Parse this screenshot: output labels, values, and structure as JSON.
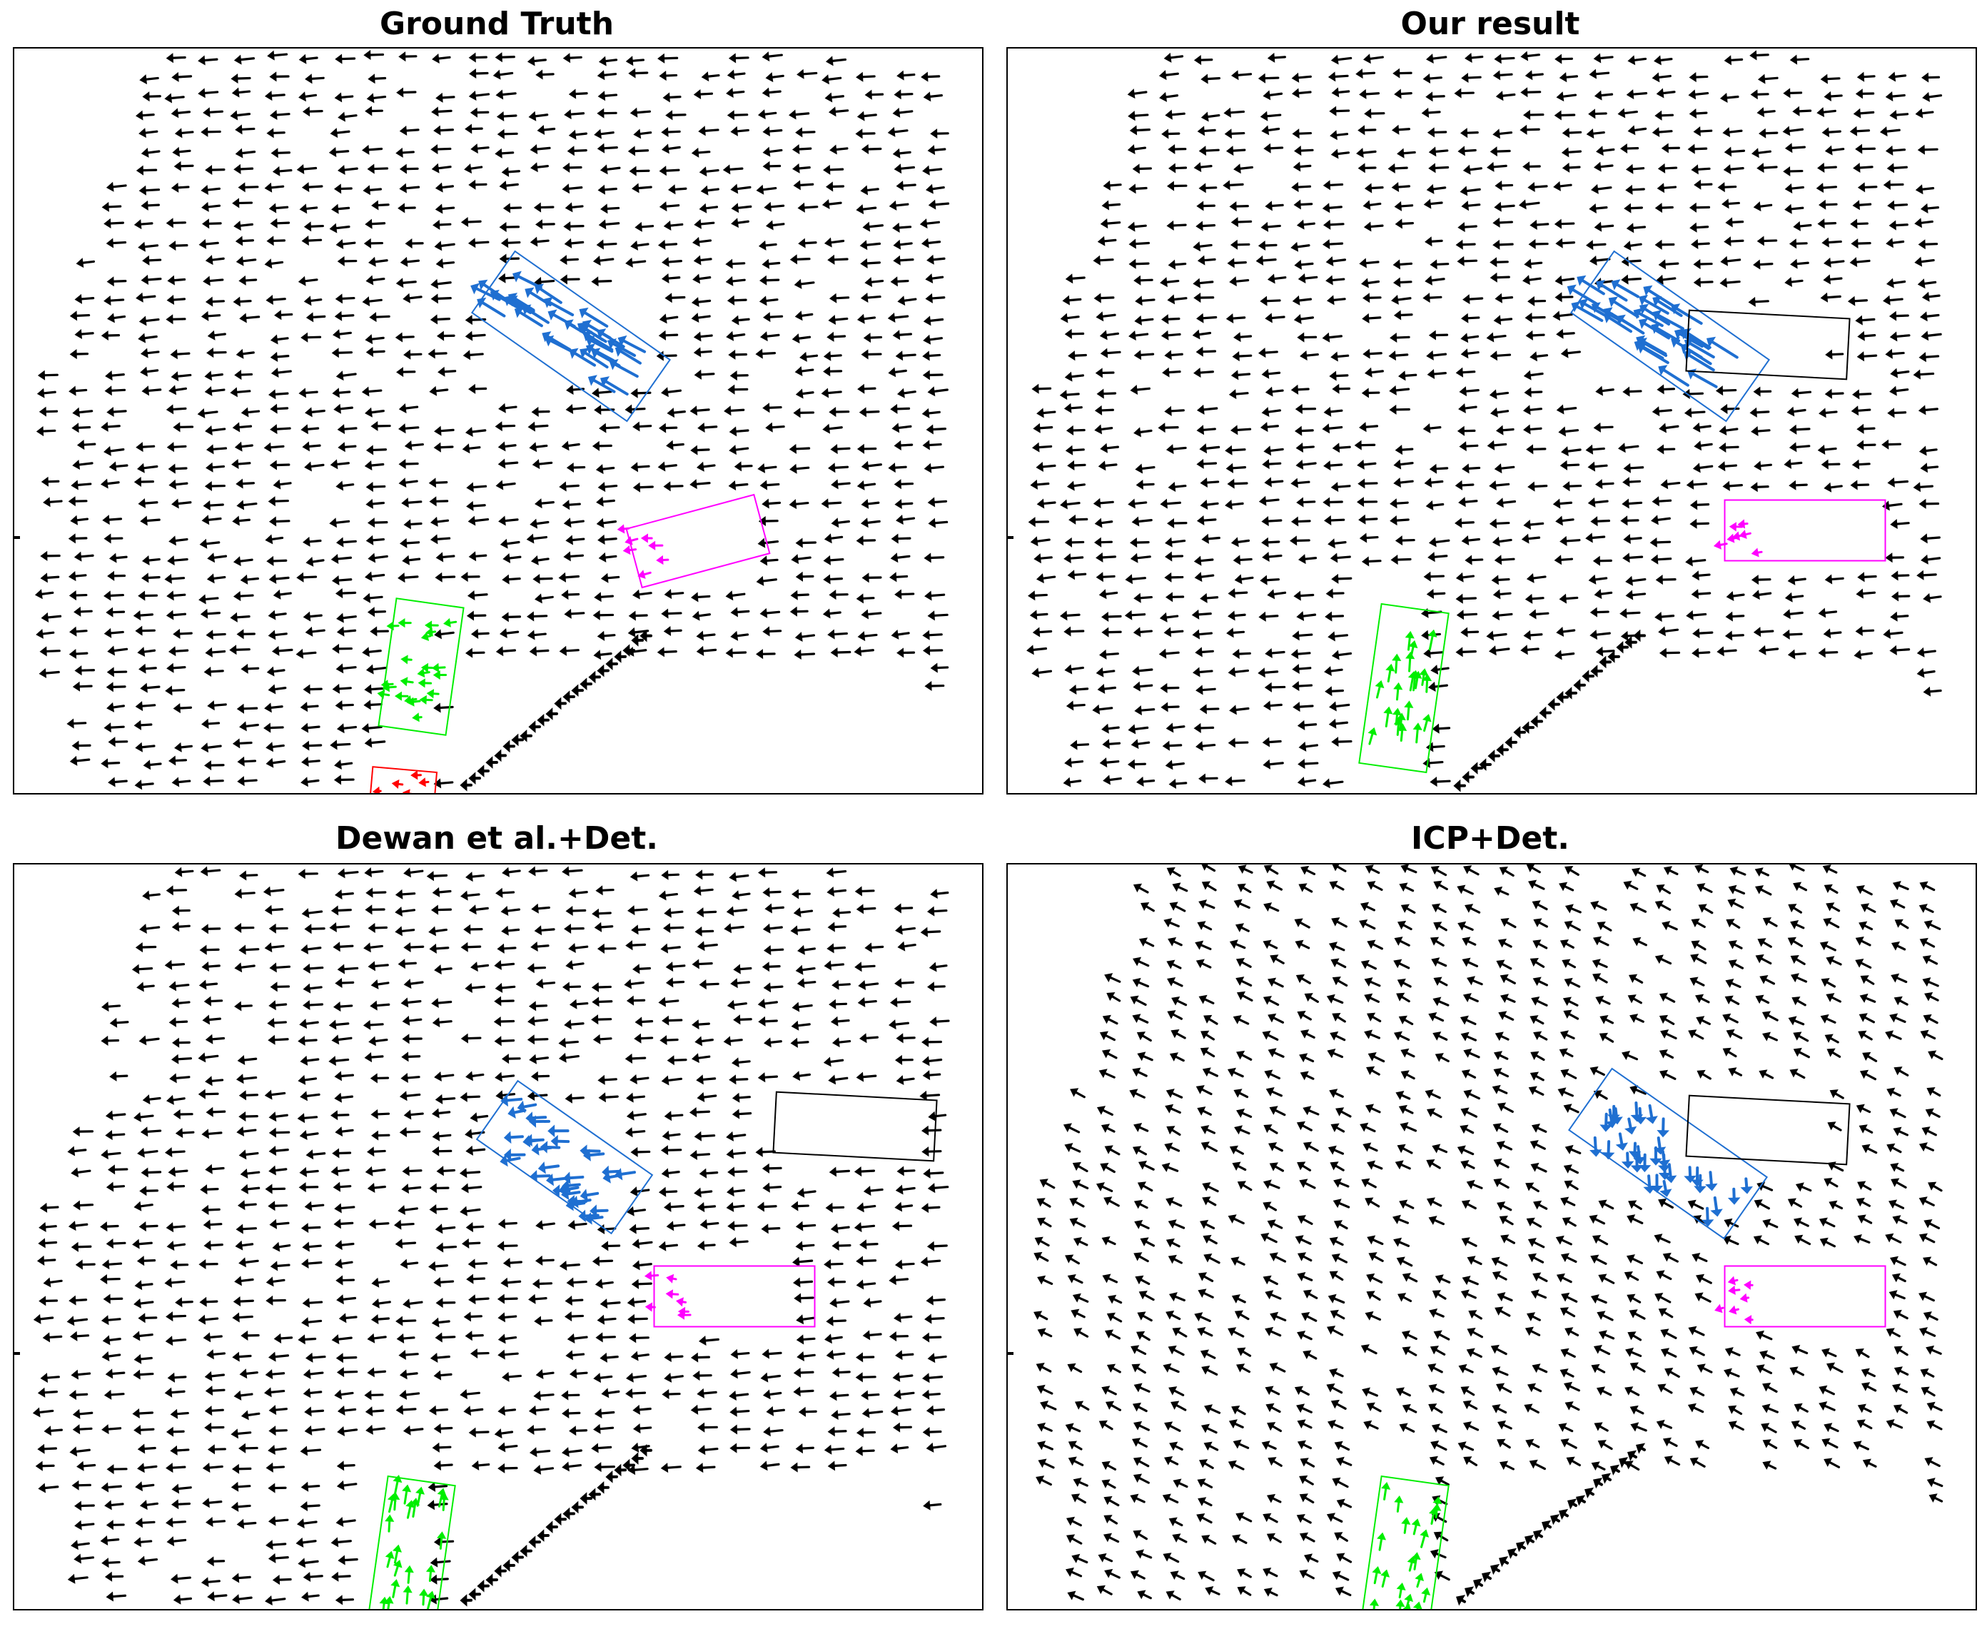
{
  "figure": {
    "panels": [
      {
        "id": "gt",
        "title": "Ground Truth"
      },
      {
        "id": "ours",
        "title": "Our result"
      },
      {
        "id": "dewan",
        "title": "Dewan et al.+Det."
      },
      {
        "id": "icp",
        "title": "ICP+Det."
      }
    ]
  },
  "colors": {
    "background_vectors": "#000000",
    "blue_object": "#1f6fd1",
    "magenta_object": "#ff00ff",
    "green_object": "#00ee00",
    "red_object": "#ff0000",
    "empty_box": "#000000"
  },
  "chart_data": [
    {
      "type": "quiver",
      "title": "Ground Truth",
      "axes": {
        "ticks": "none",
        "grid": false
      },
      "objects": [
        {
          "color": "blue",
          "flow_direction": "up-left",
          "magnitude": "large"
        },
        {
          "color": "magenta",
          "flow_direction": "left",
          "magnitude": "small"
        },
        {
          "color": "green",
          "flow_direction": "left",
          "magnitude": "small"
        },
        {
          "color": "red",
          "flow_direction": "left",
          "magnitude": "small"
        }
      ],
      "background_flow_direction": "left"
    },
    {
      "type": "quiver",
      "title": "Our result",
      "axes": {
        "ticks": "none",
        "grid": false
      },
      "objects": [
        {
          "color": "blue",
          "flow_direction": "up-left",
          "magnitude": "large"
        },
        {
          "color": "magenta",
          "flow_direction": "left",
          "magnitude": "small"
        },
        {
          "color": "green",
          "flow_direction": "up",
          "magnitude": "medium"
        },
        {
          "color": "black",
          "flow_direction": "none",
          "magnitude": "empty"
        }
      ],
      "background_flow_direction": "left"
    },
    {
      "type": "quiver",
      "title": "Dewan et al.+Det.",
      "axes": {
        "ticks": "none",
        "grid": false
      },
      "objects": [
        {
          "color": "blue",
          "flow_direction": "left",
          "magnitude": "medium"
        },
        {
          "color": "magenta",
          "flow_direction": "left",
          "magnitude": "small"
        },
        {
          "color": "green",
          "flow_direction": "up",
          "magnitude": "medium"
        },
        {
          "color": "black",
          "flow_direction": "none",
          "magnitude": "empty"
        }
      ],
      "background_flow_direction": "left"
    },
    {
      "type": "quiver",
      "title": "ICP+Det.",
      "axes": {
        "ticks": "none",
        "grid": false
      },
      "objects": [
        {
          "color": "blue",
          "flow_direction": "down",
          "magnitude": "medium"
        },
        {
          "color": "magenta",
          "flow_direction": "left",
          "magnitude": "small"
        },
        {
          "color": "green",
          "flow_direction": "up",
          "magnitude": "medium"
        },
        {
          "color": "black",
          "flow_direction": "none",
          "magnitude": "empty"
        }
      ],
      "background_flow_direction": "up-left"
    }
  ]
}
